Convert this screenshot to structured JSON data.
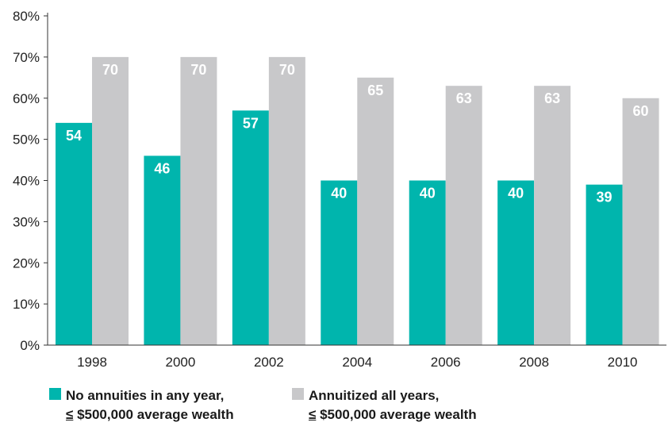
{
  "chart_data": {
    "type": "bar",
    "categories": [
      "1998",
      "2000",
      "2002",
      "2004",
      "2006",
      "2008",
      "2010"
    ],
    "series": [
      {
        "name": "No annuities in any year, ≤ $500,000 average wealth",
        "values": [
          54,
          46,
          57,
          40,
          40,
          40,
          39
        ],
        "color": "#00b5ad"
      },
      {
        "name": "Annuitized all years, ≤ $500,000 average wealth",
        "values": [
          70,
          70,
          70,
          65,
          63,
          63,
          60
        ],
        "color": "#c8c8ca"
      }
    ],
    "yticks": [
      "0%",
      "10%",
      "20%",
      "30%",
      "40%",
      "50%",
      "60%",
      "70%",
      "80%"
    ],
    "ylim": [
      0,
      80
    ],
    "grid": false,
    "legend_position": "bottom"
  },
  "legend": [
    {
      "line1": "No annuities in any year,",
      "le": "≤",
      "line2_rest": " $500,000 average wealth",
      "color": "#00b5ad"
    },
    {
      "line1": "Annuitized all years,",
      "le": "≤",
      "line2_rest": " $500,000 average wealth",
      "color": "#c8c8ca"
    }
  ]
}
